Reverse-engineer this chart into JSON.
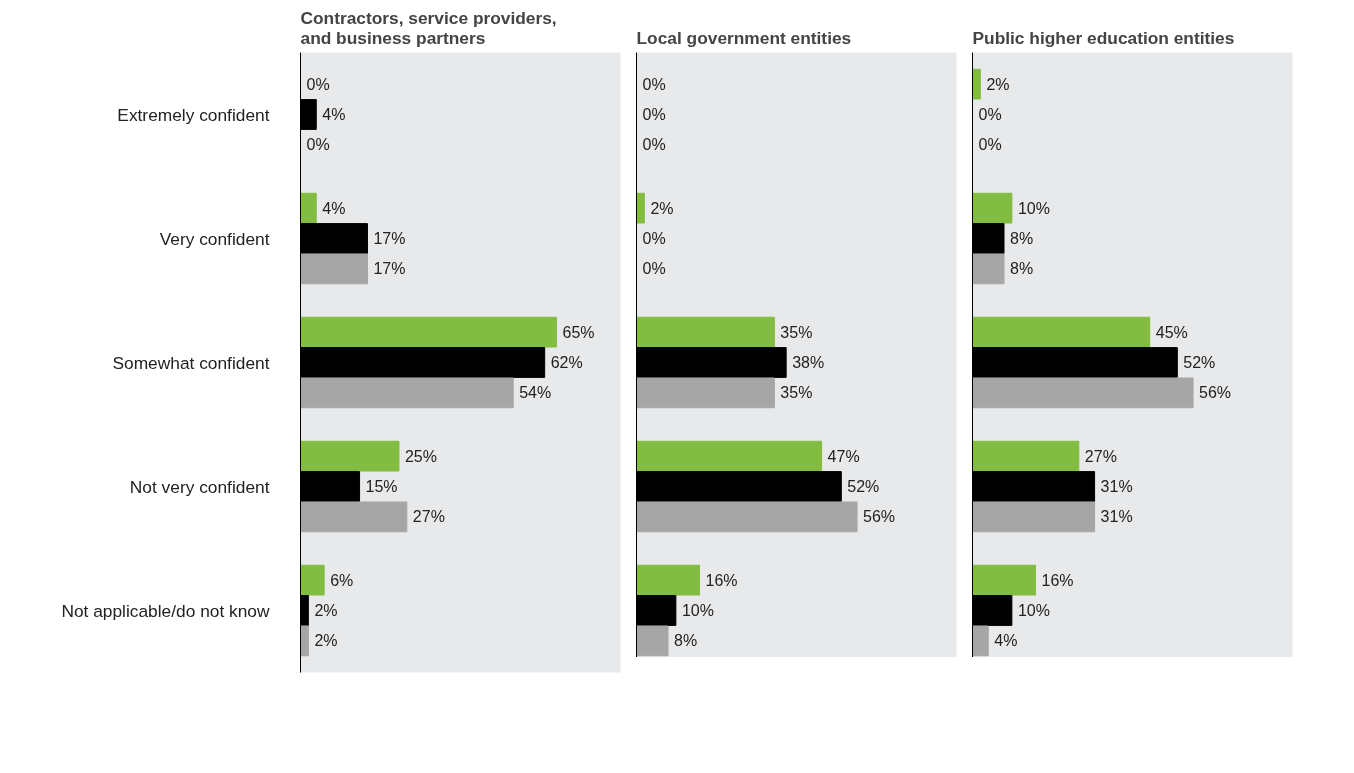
{
  "chart_data": [
    {
      "type": "bar",
      "orientation": "horizontal",
      "title": "Contractors, service providers, and business partners",
      "tick_labels": "y",
      "categories": [
        "Extremely confident",
        "Very confident",
        "Somewhat confident",
        "Not very confident",
        "Not applicable/do not know"
      ],
      "series": [
        {
          "color": "#82bc41",
          "values": [
            0,
            4,
            65,
            25,
            6
          ],
          "value_labels": [
            "0%",
            "4%",
            "65%",
            "25%",
            "6%"
          ]
        },
        {
          "color": "#000000",
          "values": [
            4,
            17,
            62,
            15,
            2
          ],
          "value_labels": [
            "4%",
            "17%",
            "62%",
            "15%",
            "2%"
          ]
        },
        {
          "color": "#a6a6a6",
          "values": [
            0,
            17,
            54,
            27,
            2
          ],
          "value_labels": [
            "0%",
            "17%",
            "54%",
            "27%",
            "2%"
          ]
        }
      ]
    },
    {
      "type": "bar",
      "orientation": "horizontal",
      "title": "Local government entities",
      "tick_labels": false,
      "categories": [
        null,
        null,
        null,
        null,
        null
      ],
      "series": [
        {
          "color": "#82bc41",
          "values": [
            0,
            2,
            35,
            47,
            16
          ],
          "value_labels": [
            "0%",
            "2%",
            "35%",
            "47%",
            "16%"
          ]
        },
        {
          "color": "#000000",
          "values": [
            0,
            0,
            38,
            52,
            10
          ],
          "value_labels": [
            "0%",
            "0%",
            "38%",
            "52%",
            "10%"
          ]
        },
        {
          "color": "#a6a6a6",
          "values": [
            0,
            0,
            35,
            56,
            8
          ],
          "value_labels": [
            "0%",
            "0%",
            "35%",
            "56%",
            "8%"
          ]
        }
      ]
    },
    {
      "type": "bar",
      "orientation": "horizontal",
      "title": "Public higher education entities",
      "tick_labels": false,
      "categories": [
        null,
        null,
        null,
        null,
        null
      ],
      "series": [
        {
          "color": "#82bc41",
          "values": [
            2,
            10,
            45,
            27,
            16
          ],
          "value_labels": [
            "2%",
            "10%",
            "45%",
            "27%",
            "16%"
          ]
        },
        {
          "color": "#000000",
          "values": [
            0,
            8,
            52,
            31,
            10
          ],
          "value_labels": [
            "0%",
            "8%",
            "52%",
            "31%",
            "10%"
          ]
        },
        {
          "color": "#a6a6a6",
          "values": [
            0,
            8,
            56,
            31,
            4
          ],
          "value_labels": [
            "0%",
            "8%",
            "56%",
            "31%",
            "4%"
          ]
        }
      ]
    }
  ]
}
